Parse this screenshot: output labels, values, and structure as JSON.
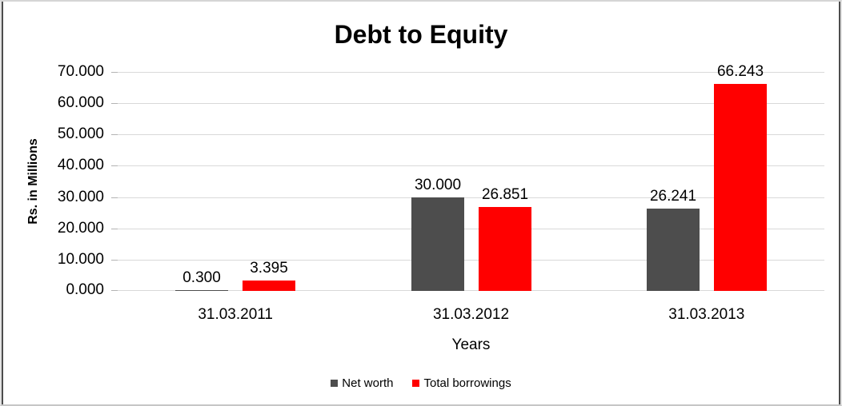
{
  "chart": {
    "title": "Debt to Equity",
    "y_axis_title": "Rs. in Millions",
    "x_axis_title": "Years"
  },
  "chart_data": {
    "type": "bar",
    "title": "Debt to Equity",
    "xlabel": "Years",
    "ylabel": "Rs. in Millions",
    "categories": [
      "31.03.2011",
      "31.03.2012",
      "31.03.2013"
    ],
    "series": [
      {
        "name": "Net worth",
        "color": "#4d4d4d",
        "values": [
          0.3,
          30.0,
          26.241
        ],
        "labels": [
          "0.300",
          "30.000",
          "26.241"
        ]
      },
      {
        "name": "Total borrowings",
        "color": "#ff0000",
        "values": [
          3.395,
          26.851,
          66.243
        ],
        "labels": [
          "3.395",
          "26.851",
          "66.243"
        ]
      }
    ],
    "ylim": [
      0,
      70
    ],
    "ytick_step": 10,
    "ytick_labels": [
      "0.000",
      "10.000",
      "20.000",
      "30.000",
      "40.000",
      "50.000",
      "60.000",
      "70.000"
    ],
    "grid": true,
    "legend_position": "bottom"
  },
  "colors": {
    "background": "#ffffff",
    "gridline": "#d9d9d9",
    "tick": "#b3b3b3",
    "text": "#000000",
    "net_worth": "#4d4d4d",
    "total_borrowings": "#ff0000"
  }
}
